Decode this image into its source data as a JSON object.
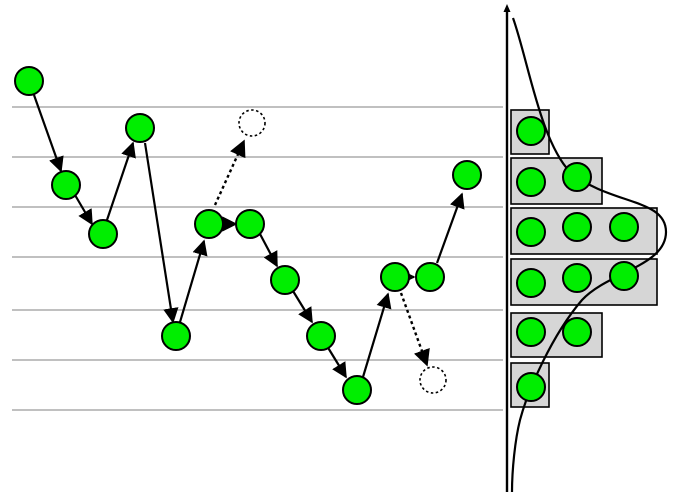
{
  "diagram": {
    "type": "random-walk-with-histogram",
    "level_count": 6,
    "colors": {
      "dot_fill": "#00ee00",
      "dot_stroke": "#000000",
      "ghost_dot_stroke": "#000000",
      "grid_line": "#9a9a9a",
      "bar_fill": "#d6d6d6",
      "bar_stroke": "#000000",
      "curve": "#000000",
      "background": "#ffffff"
    },
    "histogram": {
      "counts_top_to_bottom": [
        1,
        2,
        3,
        3,
        2,
        1
      ]
    }
  }
}
